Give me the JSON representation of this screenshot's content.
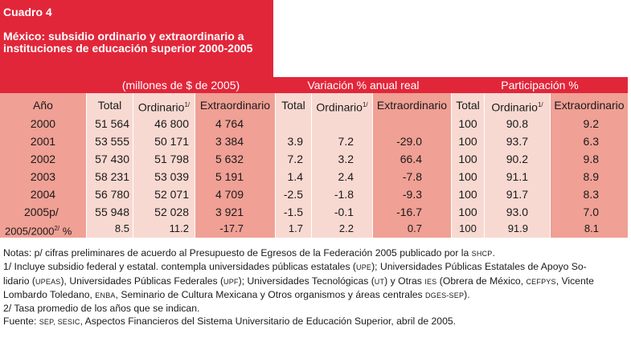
{
  "header": {
    "label": "Cuadro 4",
    "title": "México: subsidio ordinario y extraordinario a instituciones de educación superior 2000-2005"
  },
  "groups": {
    "millones": "(millones de $ de 2005)",
    "variacion": "Variación % anual real",
    "participacion": "Participación %"
  },
  "columns": {
    "anio": "Año",
    "total": "Total",
    "ordinario": "Ordinario",
    "ordinario_sup": "1/",
    "extraordinario": "Extraordinario",
    "v_total": "Total",
    "v_ordinario": "Ordinario",
    "v_ordinario_sup": "1/",
    "v_extraordinario": "Extraordinario",
    "p_total": "Total",
    "p_ordinario": "Ordinario",
    "p_ordinario_sup": "1/",
    "p_extraordinario": "Extraordinario"
  },
  "rows": [
    {
      "anio": "2000",
      "total": "51 564",
      "ord": "46 800",
      "ext": "4 764",
      "vt": "",
      "vo": "",
      "ve": "",
      "pt": "100",
      "po": "90.8",
      "pe": "9.2"
    },
    {
      "anio": "2001",
      "total": "53 555",
      "ord": "50 171",
      "ext": "3 384",
      "vt": "3.9",
      "vo": "7.2",
      "ve": "-29.0",
      "pt": "100",
      "po": "93.7",
      "pe": "6.3"
    },
    {
      "anio": "2002",
      "total": "57 430",
      "ord": "51 798",
      "ext": "5 632",
      "vt": "7.2",
      "vo": "3.2",
      "ve": "66.4",
      "pt": "100",
      "po": "90.2",
      "pe": "9.8"
    },
    {
      "anio": "2003",
      "total": "58 231",
      "ord": "53 039",
      "ext": "5 191",
      "vt": "1.4",
      "vo": "2.4",
      "ve": "-7.8",
      "pt": "100",
      "po": "91.1",
      "pe": "8.9"
    },
    {
      "anio": "2004",
      "total": "56 780",
      "ord": "52 071",
      "ext": "4 709",
      "vt": "-2.5",
      "vo": "-1.8",
      "ve": "-9.3",
      "pt": "100",
      "po": "91.7",
      "pe": "8.3"
    },
    {
      "anio": "2005p/",
      "total": "55 948",
      "ord": "52 028",
      "ext": "3 921",
      "vt": "-1.5",
      "vo": "-0.1",
      "ve": "-16.7",
      "pt": "100",
      "po": "93.0",
      "pe": "7.0"
    }
  ],
  "avg_row": {
    "label": "2005/2000",
    "label_sup": "2/",
    "label_unit": "%",
    "total": "8.5",
    "ord": "11.2",
    "ext": "-17.7",
    "vt": "1.7",
    "vo": "2.2",
    "ve": "0.7",
    "pt": "100",
    "po": "91.9",
    "pe": "8.1"
  },
  "notes": {
    "n0_a": "Notas: p/ cifras preliminares de acuerdo al Presupuesto de Egresos de la Federación 2005 publicado por la ",
    "n0_b": "SHCP",
    "n0_c": ".",
    "n1_a": "1/ Incluye subsidio federal y estatal. contempla universidades públicas estatales (",
    "n1_b": "UPE",
    "n1_c": "); Universidades Públicas Estatales de Apoyo So-",
    "n2_a": "lidario (",
    "n2_b": "UPEAS",
    "n2_c": "), Universidades Públicas Federales (",
    "n2_d": "UPF",
    "n2_e": "); Universidades Tecnológicas (",
    "n2_f": "UT",
    "n2_g": ") y Otras ",
    "n2_h": "IES",
    "n2_i": " (Obrera de México, ",
    "n2_j": "CEFPYS",
    "n2_k": ", Vicente",
    "n3_a": "Lombardo Toledano, ",
    "n3_b": "ENBA",
    "n3_c": ", Seminario de Cultura Mexicana y Otros organismos y áreas centrales ",
    "n3_d": "DGES-SEP",
    "n3_e": ").",
    "n4": "2/ Tasa promedio de los años que se indican.",
    "n5_a": "Fuente: ",
    "n5_b": "SEP, SESIC",
    "n5_c": ",  Aspectos Financieros del Sistema Universitario de Educación Superior, abril de 2005."
  }
}
